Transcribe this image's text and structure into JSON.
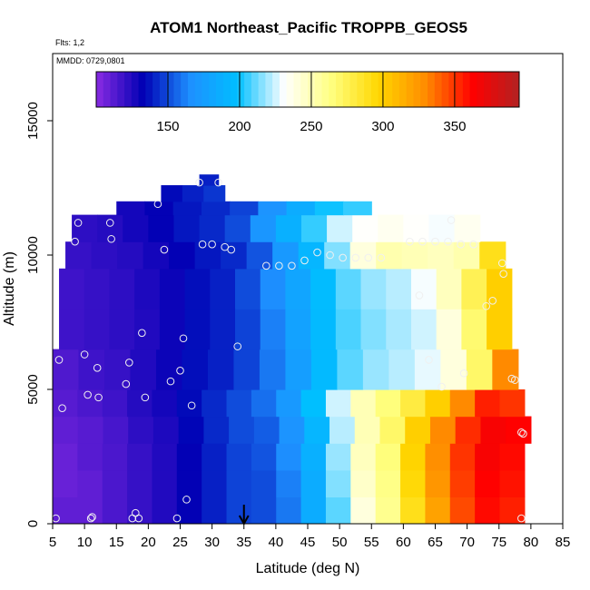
{
  "chart_data": {
    "type": "heatmap",
    "title": "ATOM1 Northeast_Pacific TROPPB_GEOS5",
    "annotations": {
      "flights": "Flts: 1,2",
      "dates": "MMDD: 0729,0801"
    },
    "xlabel": "Latitude (deg N)",
    "ylabel": "Altitude (m)",
    "xlim": [
      5,
      85
    ],
    "ylim": [
      0,
      17500
    ],
    "xticks": [
      5,
      10,
      15,
      20,
      25,
      30,
      35,
      40,
      45,
      50,
      55,
      60,
      65,
      70,
      75,
      80,
      85
    ],
    "yticks": [
      0,
      5000,
      10000,
      15000
    ],
    "grid": false,
    "colorbar": {
      "position": "top-inset",
      "range": [
        100,
        395
      ],
      "ticks": [
        150,
        200,
        250,
        300,
        350
      ],
      "colors": [
        "#8a2be2",
        "#0000b4",
        "#1e90ff",
        "#00bfff",
        "#ffffff",
        "#ffff80",
        "#ffd700",
        "#ff8c00",
        "#ff0000",
        "#b22222"
      ]
    },
    "latitude_marker": 35,
    "altitude_profile": [
      {
        "alt_min": 0,
        "alt_max": 1000,
        "lat_min": 5,
        "lat_max": 79,
        "values": [
          110,
          110,
          115,
          120,
          125,
          132,
          140,
          148,
          150,
          160,
          185,
          210,
          240,
          260,
          290,
          320,
          345,
          360,
          355
        ]
      },
      {
        "alt_min": 1000,
        "alt_max": 2000,
        "lat_min": 5,
        "lat_max": 79,
        "values": [
          108,
          110,
          115,
          120,
          125,
          132,
          140,
          148,
          150,
          162,
          185,
          215,
          245,
          262,
          295,
          325,
          348,
          362,
          358
        ]
      },
      {
        "alt_min": 2000,
        "alt_max": 3000,
        "lat_min": 5,
        "lat_max": 79,
        "values": [
          108,
          112,
          115,
          120,
          125,
          132,
          140,
          148,
          152,
          165,
          188,
          218,
          248,
          265,
          298,
          328,
          350,
          365,
          360
        ]
      },
      {
        "alt_min": 3000,
        "alt_max": 4000,
        "lat_min": 5,
        "lat_max": 80,
        "values": [
          110,
          112,
          116,
          122,
          126,
          134,
          142,
          150,
          154,
          168,
          192,
          222,
          250,
          270,
          300,
          330,
          352,
          365,
          362
        ]
      },
      {
        "alt_min": 4000,
        "alt_max": 5000,
        "lat_min": 5,
        "lat_max": 79,
        "values": [
          112,
          115,
          118,
          124,
          128,
          135,
          142,
          150,
          158,
          172,
          198,
          225,
          250,
          265,
          280,
          300,
          330,
          355,
          350
        ]
      },
      {
        "alt_min": 5000,
        "alt_max": 6500,
        "lat_min": 5,
        "lat_max": 78,
        "values": [
          114,
          118,
          120,
          125,
          130,
          136,
          140,
          148,
          160,
          175,
          195,
          210,
          218,
          222,
          228,
          240,
          270,
          330
        ]
      },
      {
        "alt_min": 6500,
        "alt_max": 8000,
        "lat_min": 6,
        "lat_max": 77,
        "values": [
          118,
          120,
          122,
          125,
          130,
          136,
          140,
          148,
          162,
          178,
          195,
          208,
          215,
          220,
          225,
          240,
          268,
          300
        ]
      },
      {
        "alt_min": 8000,
        "alt_max": 9500,
        "lat_min": 6,
        "lat_max": 77,
        "values": [
          118,
          120,
          122,
          126,
          130,
          136,
          140,
          150,
          165,
          180,
          196,
          210,
          218,
          222,
          230,
          248,
          275,
          300
        ]
      },
      {
        "alt_min": 9500,
        "alt_max": 10500,
        "lat_min": 7,
        "lat_max": 76,
        "values": [
          120,
          122,
          124,
          128,
          132,
          138,
          142,
          152,
          172,
          192,
          215,
          240,
          252,
          250,
          248,
          252,
          290
        ]
      },
      {
        "alt_min": 10500,
        "alt_max": 11500,
        "lat_min": 8,
        "lat_max": 72,
        "values": [
          122,
          124,
          128,
          132,
          138,
          142,
          150,
          170,
          188,
          205,
          225,
          232,
          235,
          232,
          230,
          235
        ]
      },
      {
        "alt_min": 11500,
        "alt_max": 12000,
        "lat_min": 15,
        "lat_max": 55,
        "values": [
          128,
          132,
          138,
          142,
          148,
          168,
          185,
          200,
          205
        ]
      },
      {
        "alt_min": 12000,
        "alt_max": 12600,
        "lat_min": 22,
        "lat_max": 32,
        "values": [
          135,
          140,
          145
        ]
      },
      {
        "alt_min": 12600,
        "alt_max": 13000,
        "lat_min": 28,
        "lat_max": 31,
        "values": [
          140
        ]
      }
    ],
    "sample_points": [
      {
        "lat": 5.5,
        "alt": 200
      },
      {
        "lat": 6,
        "alt": 6100
      },
      {
        "lat": 6.5,
        "alt": 4300
      },
      {
        "lat": 8.5,
        "alt": 10500
      },
      {
        "lat": 9,
        "alt": 11200
      },
      {
        "lat": 10,
        "alt": 6300
      },
      {
        "lat": 10.5,
        "alt": 4800
      },
      {
        "lat": 11,
        "alt": 200
      },
      {
        "lat": 11.2,
        "alt": 250
      },
      {
        "lat": 12,
        "alt": 5800
      },
      {
        "lat": 12.2,
        "alt": 4700
      },
      {
        "lat": 14,
        "alt": 11200
      },
      {
        "lat": 14.2,
        "alt": 10600
      },
      {
        "lat": 16.5,
        "alt": 5200
      },
      {
        "lat": 17,
        "alt": 6000
      },
      {
        "lat": 17.5,
        "alt": 200
      },
      {
        "lat": 18,
        "alt": 400
      },
      {
        "lat": 18.5,
        "alt": 200
      },
      {
        "lat": 19,
        "alt": 7100
      },
      {
        "lat": 19.5,
        "alt": 4700
      },
      {
        "lat": 21.5,
        "alt": 11900
      },
      {
        "lat": 22.5,
        "alt": 10200
      },
      {
        "lat": 23.5,
        "alt": 5300
      },
      {
        "lat": 24.5,
        "alt": 200
      },
      {
        "lat": 25,
        "alt": 5700
      },
      {
        "lat": 25.5,
        "alt": 6900
      },
      {
        "lat": 26,
        "alt": 900
      },
      {
        "lat": 26.8,
        "alt": 4400
      },
      {
        "lat": 28,
        "alt": 12700
      },
      {
        "lat": 28.5,
        "alt": 10400
      },
      {
        "lat": 30,
        "alt": 10400
      },
      {
        "lat": 31,
        "alt": 12700
      },
      {
        "lat": 32,
        "alt": 10300
      },
      {
        "lat": 33,
        "alt": 10200
      },
      {
        "lat": 34,
        "alt": 6600
      },
      {
        "lat": 38.5,
        "alt": 9600
      },
      {
        "lat": 40.5,
        "alt": 9600
      },
      {
        "lat": 42.5,
        "alt": 9600
      },
      {
        "lat": 44.5,
        "alt": 9800
      },
      {
        "lat": 46.5,
        "alt": 10100
      },
      {
        "lat": 48.5,
        "alt": 10000
      },
      {
        "lat": 50.5,
        "alt": 9900
      },
      {
        "lat": 52.5,
        "alt": 9900
      },
      {
        "lat": 54.5,
        "alt": 9900
      },
      {
        "lat": 56.5,
        "alt": 9900
      },
      {
        "lat": 61,
        "alt": 10500
      },
      {
        "lat": 62.5,
        "alt": 8500
      },
      {
        "lat": 63,
        "alt": 10500
      },
      {
        "lat": 64,
        "alt": 6100
      },
      {
        "lat": 65,
        "alt": 10500
      },
      {
        "lat": 66,
        "alt": 5100
      },
      {
        "lat": 67,
        "alt": 10500
      },
      {
        "lat": 67.5,
        "alt": 11300
      },
      {
        "lat": 69,
        "alt": 10400
      },
      {
        "lat": 69.5,
        "alt": 5600
      },
      {
        "lat": 71,
        "alt": 10400
      },
      {
        "lat": 73,
        "alt": 8100
      },
      {
        "lat": 74,
        "alt": 8300
      },
      {
        "lat": 75.5,
        "alt": 9700
      },
      {
        "lat": 75.7,
        "alt": 9300
      },
      {
        "lat": 77,
        "alt": 5400
      },
      {
        "lat": 77.5,
        "alt": 5350
      },
      {
        "lat": 78.5,
        "alt": 3400
      },
      {
        "lat": 78.8,
        "alt": 3350
      },
      {
        "lat": 78.5,
        "alt": 200
      }
    ]
  }
}
